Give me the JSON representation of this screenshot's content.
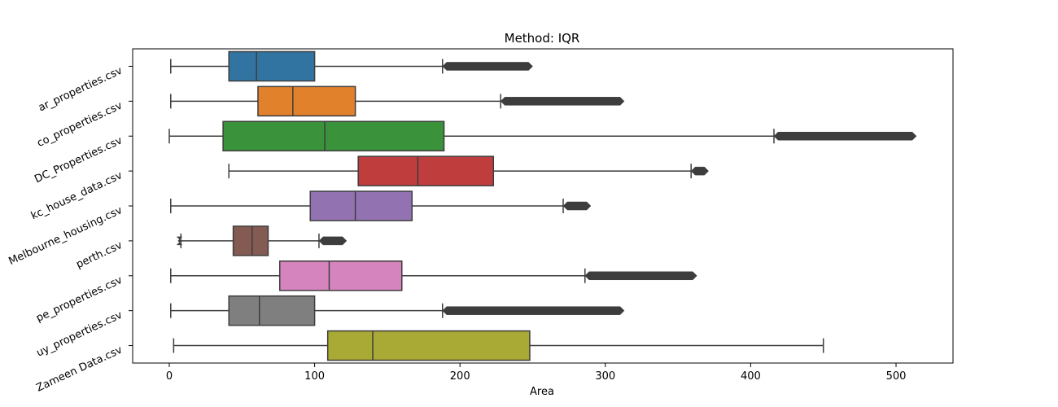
{
  "chart_data": {
    "type": "box",
    "title": "Method: IQR",
    "xlabel": "Area",
    "ylabel": "",
    "xlim": [
      -25,
      538
    ],
    "xticks": [
      0,
      100,
      200,
      300,
      400,
      500
    ],
    "grid": false,
    "orientation": "horizontal",
    "series": [
      {
        "name": "ar_properties.csv",
        "color": "#3274a1",
        "whisker_low": 1,
        "q1": 41,
        "median": 60,
        "q3": 100,
        "whisker_high": 188,
        "outliers_range": [
          188,
          250
        ]
      },
      {
        "name": "co_properties.csv",
        "color": "#e1812c",
        "whisker_low": 1,
        "q1": 61,
        "median": 85,
        "q3": 128,
        "whisker_high": 228,
        "outliers_range": [
          228,
          313
        ]
      },
      {
        "name": "DC_Properties.csv",
        "color": "#3a923a",
        "whisker_low": 0,
        "q1": 37,
        "median": 107,
        "q3": 189,
        "whisker_high": 416,
        "outliers_range": [
          416,
          514
        ]
      },
      {
        "name": "kc_house_data.csv",
        "color": "#c03d3e",
        "whisker_low": 41,
        "q1": 130,
        "median": 171,
        "q3": 223,
        "whisker_high": 359,
        "outliers_range": [
          359,
          371
        ]
      },
      {
        "name": "Melbourne_housing.csv",
        "color": "#9372b2",
        "whisker_low": 1,
        "q1": 97,
        "median": 128,
        "q3": 167,
        "whisker_high": 271,
        "outliers_range": [
          271,
          290
        ]
      },
      {
        "name": "perth.csv",
        "color": "#845b53",
        "whisker_low": 8,
        "q1": 44,
        "median": 57,
        "q3": 68,
        "whisker_high": 103,
        "outliers_range": [
          103,
          122
        ],
        "outliers_low_range": [
          6,
          8
        ]
      },
      {
        "name": "pe_properties.csv",
        "color": "#d684bd",
        "whisker_low": 1,
        "q1": 76,
        "median": 110,
        "q3": 160,
        "whisker_high": 286,
        "outliers_range": [
          286,
          363
        ]
      },
      {
        "name": "uy_properties.csv",
        "color": "#7f7f7f",
        "whisker_low": 1,
        "q1": 41,
        "median": 62,
        "q3": 100,
        "whisker_high": 188,
        "outliers_range": [
          188,
          313
        ]
      },
      {
        "name": "Zameen Data.csv",
        "color": "#a9aa35",
        "whisker_low": 3,
        "q1": 109,
        "median": 140,
        "q3": 248,
        "whisker_high": 450
      }
    ]
  }
}
